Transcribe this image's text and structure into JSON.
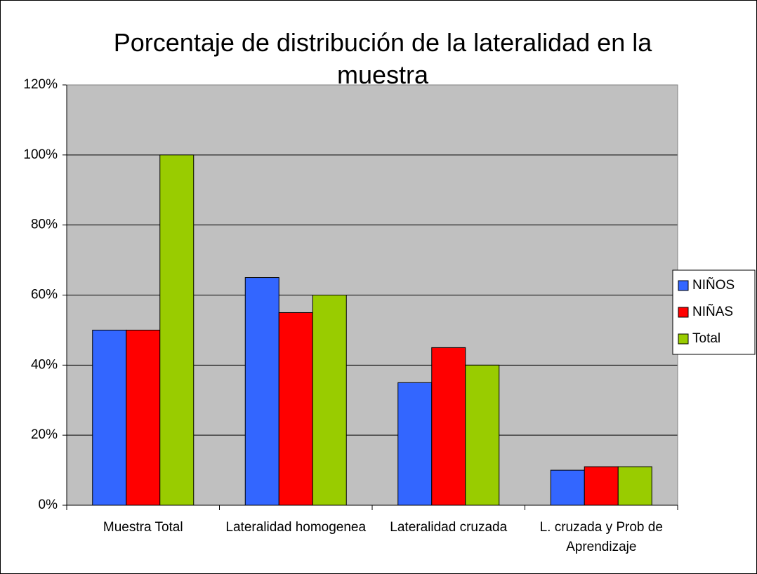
{
  "chart_data": {
    "type": "bar",
    "title": "Porcentaje de distribución de la lateralidad en la muestra",
    "categories": [
      "Muestra Total",
      "Lateralidad homogenea",
      "Lateralidad cruzada",
      "L. cruzada y Prob de Aprendizaje"
    ],
    "series": [
      {
        "name": "NIÑOS",
        "color": "#3366ff",
        "values": [
          50,
          65,
          35,
          10
        ]
      },
      {
        "name": "NIÑAS",
        "color": "#ff0000",
        "values": [
          50,
          55,
          45,
          11
        ]
      },
      {
        "name": "Total",
        "color": "#99cc00",
        "values": [
          100,
          60,
          40,
          11
        ]
      }
    ],
    "ylim": [
      0,
      120
    ],
    "yticks": [
      {
        "value": 0,
        "label": "0%"
      },
      {
        "value": 20,
        "label": "20%"
      },
      {
        "value": 40,
        "label": "40%"
      },
      {
        "value": 60,
        "label": "60%"
      },
      {
        "value": 80,
        "label": "80%"
      },
      {
        "value": 100,
        "label": "100%"
      },
      {
        "value": 120,
        "label": "120%"
      }
    ],
    "grid": true,
    "legend": "right"
  }
}
